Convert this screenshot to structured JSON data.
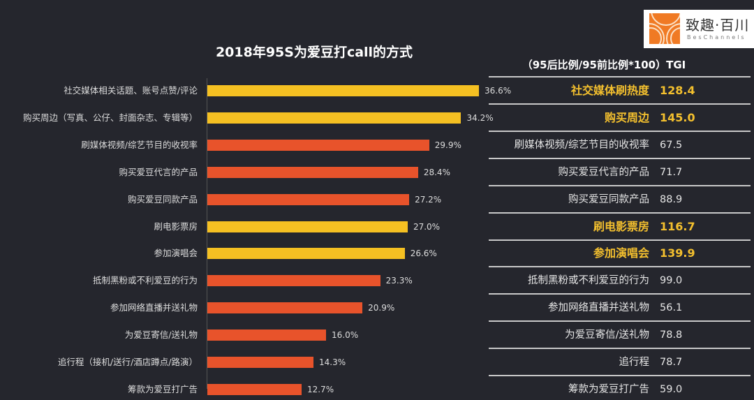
{
  "logo": {
    "text_cn": "致趣·百川",
    "text_en": "BesChannels",
    "color": "#f07a24"
  },
  "chart_data": {
    "type": "bar",
    "orientation": "horizontal",
    "title": "2018年95S为爱豆打call的方式",
    "categories": [
      "社交媒体相关话题、账号点赞/评论",
      "购买周边（写真、公仔、封面杂志、专辑等）",
      "刷媒体视频/综艺节目的收视率",
      "购买爱豆代言的产品",
      "购买爱豆同款产品",
      "刷电影票房",
      "参加演唱会",
      "抵制黑粉或不利爱豆的行为",
      "参加网络直播并送礼物",
      "为爱豆寄信/送礼物",
      "追行程（接机/送行/酒店蹲点/路演）",
      "筹款为爱豆打广告"
    ],
    "values": [
      36.6,
      34.2,
      29.9,
      28.4,
      27.2,
      27.0,
      26.6,
      23.3,
      20.9,
      16.0,
      14.3,
      12.7
    ],
    "value_labels": [
      "36.6%",
      "34.2%",
      "29.9%",
      "28.4%",
      "27.2%",
      "27.0%",
      "26.6%",
      "23.3%",
      "20.9%",
      "16.0%",
      "14.3%",
      "12.7%"
    ],
    "highlight": [
      true,
      true,
      false,
      false,
      false,
      true,
      true,
      false,
      false,
      false,
      false,
      false
    ],
    "colors": {
      "highlight": "#f5c022",
      "normal": "#e8532b"
    },
    "xlim": [
      0,
      40
    ]
  },
  "table": {
    "header": "（95后比例/95前比例*100）TGI",
    "rows": [
      {
        "name": "社交媒体刷热度",
        "tgi": "128.4",
        "highlight": true
      },
      {
        "name": "购买周边",
        "tgi": "145.0",
        "highlight": true
      },
      {
        "name": "刷媒体视频/综艺节目的收视率",
        "tgi": "67.5",
        "highlight": false
      },
      {
        "name": "购买爱豆代言的产品",
        "tgi": "71.7",
        "highlight": false
      },
      {
        "name": "购买爱豆同款产品",
        "tgi": "88.9",
        "highlight": false
      },
      {
        "name": "刷电影票房",
        "tgi": "116.7",
        "highlight": true
      },
      {
        "name": "参加演唱会",
        "tgi": "139.9",
        "highlight": true
      },
      {
        "name": "抵制黑粉或不利爱豆的行为",
        "tgi": "99.0",
        "highlight": false
      },
      {
        "name": "参加网络直播并送礼物",
        "tgi": "56.1",
        "highlight": false
      },
      {
        "name": "为爱豆寄信/送礼物",
        "tgi": "78.8",
        "highlight": false
      },
      {
        "name": "追行程",
        "tgi": "78.7",
        "highlight": false
      },
      {
        "name": "筹款为爱豆打广告",
        "tgi": "59.0",
        "highlight": false
      }
    ]
  }
}
